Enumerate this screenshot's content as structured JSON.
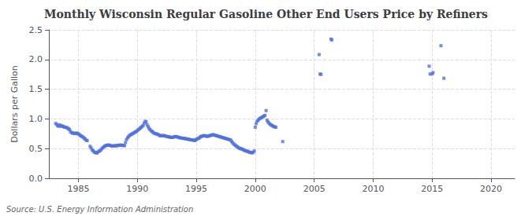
{
  "chart_data": {
    "type": "scatter",
    "title": "Monthly Wisconsin Regular Gasoline Other End Users Price by Refiners",
    "ylabel": "Dollars per Gallon",
    "annotations": [
      "Source: U.S. Energy Information Administration"
    ],
    "marker": "square",
    "grid": true,
    "xlim": [
      1982.5,
      2022
    ],
    "ylim": [
      0.0,
      2.5
    ],
    "xticks": [
      1985,
      1990,
      1995,
      2000,
      2005,
      2010,
      2015,
      2020
    ],
    "yticks": [
      {
        "value": 0,
        "label": "0.0"
      },
      0.5,
      {
        "value": 1,
        "label": "1.0"
      },
      1.5,
      {
        "value": 2,
        "label": "2.0"
      },
      2.5
    ],
    "x": [
      1983.08,
      1983.17,
      1983.25,
      1983.33,
      1983.42,
      1983.5,
      1983.58,
      1983.67,
      1983.75,
      1983.83,
      1983.92,
      1984.0,
      1984.08,
      1984.17,
      1984.25,
      1984.33,
      1984.42,
      1984.5,
      1984.58,
      1984.67,
      1984.75,
      1984.83,
      1984.92,
      1985.0,
      1985.08,
      1985.17,
      1985.25,
      1985.33,
      1985.42,
      1985.5,
      1985.58,
      1985.67,
      1985.75,
      1986.0,
      1986.08,
      1986.17,
      1986.25,
      1986.33,
      1986.42,
      1986.5,
      1986.58,
      1986.67,
      1986.75,
      1986.83,
      1986.92,
      1987.0,
      1987.08,
      1987.17,
      1987.25,
      1987.33,
      1987.42,
      1987.5,
      1987.58,
      1987.67,
      1987.75,
      1987.83,
      1987.92,
      1988.0,
      1988.08,
      1988.17,
      1988.25,
      1988.33,
      1988.42,
      1988.5,
      1988.58,
      1988.67,
      1988.75,
      1988.83,
      1988.92,
      1989.0,
      1989.08,
      1989.17,
      1989.25,
      1989.33,
      1989.42,
      1989.5,
      1989.58,
      1989.67,
      1989.75,
      1989.83,
      1989.92,
      1990.0,
      1990.08,
      1990.17,
      1990.25,
      1990.33,
      1990.42,
      1990.5,
      1990.58,
      1990.67,
      1990.75,
      1990.83,
      1990.92,
      1991.0,
      1991.08,
      1991.17,
      1991.25,
      1991.33,
      1991.42,
      1991.5,
      1991.58,
      1991.67,
      1991.75,
      1991.83,
      1991.92,
      1992.0,
      1992.08,
      1992.17,
      1992.25,
      1992.33,
      1992.42,
      1992.5,
      1992.58,
      1992.67,
      1992.75,
      1992.83,
      1992.92,
      1993.0,
      1993.08,
      1993.17,
      1993.25,
      1993.33,
      1993.42,
      1993.5,
      1993.58,
      1993.67,
      1993.75,
      1993.83,
      1993.92,
      1994.0,
      1994.08,
      1994.17,
      1994.25,
      1994.33,
      1994.42,
      1994.5,
      1994.58,
      1994.67,
      1994.75,
      1994.83,
      1994.92,
      1995.0,
      1995.08,
      1995.17,
      1995.25,
      1995.33,
      1995.42,
      1995.5,
      1995.58,
      1995.67,
      1995.75,
      1995.83,
      1995.92,
      1996.0,
      1996.08,
      1996.17,
      1996.25,
      1996.33,
      1996.42,
      1996.5,
      1996.58,
      1996.67,
      1996.75,
      1996.83,
      1996.92,
      1997.0,
      1997.08,
      1997.17,
      1997.25,
      1997.33,
      1997.42,
      1997.5,
      1997.58,
      1997.67,
      1997.75,
      1997.83,
      1997.92,
      1998.0,
      1998.08,
      1998.17,
      1998.25,
      1998.33,
      1998.42,
      1998.5,
      1998.58,
      1998.67,
      1998.75,
      1998.83,
      1998.92,
      1999.0,
      1999.08,
      1999.17,
      1999.25,
      1999.33,
      1999.42,
      1999.5,
      1999.58,
      1999.67,
      1999.75,
      1999.83,
      1999.92,
      2000.0,
      2000.08,
      2000.17,
      2000.25,
      2000.33,
      2000.42,
      2000.5,
      2000.58,
      2000.67,
      2000.75,
      2000.83,
      2000.92,
      2001.0,
      2001.08,
      2001.17,
      2001.25,
      2001.33,
      2001.42,
      2001.5,
      2001.58,
      2001.67,
      2001.75,
      2002.33,
      2005.42,
      2005.5,
      2005.58,
      2006.42,
      2006.5,
      2014.75,
      2014.83,
      2015.0,
      2015.08,
      2015.75,
      2016.0
    ],
    "values": [
      0.924,
      0.907,
      0.884,
      0.878,
      0.9,
      0.88,
      0.878,
      0.882,
      0.87,
      0.86,
      0.858,
      0.858,
      0.842,
      0.836,
      0.82,
      0.788,
      0.768,
      0.762,
      0.76,
      0.758,
      0.752,
      0.76,
      0.758,
      0.748,
      0.736,
      0.72,
      0.712,
      0.7,
      0.692,
      0.675,
      0.66,
      0.64,
      0.635,
      0.54,
      0.51,
      0.48,
      0.465,
      0.445,
      0.435,
      0.43,
      0.425,
      0.445,
      0.455,
      0.465,
      0.48,
      0.5,
      0.515,
      0.53,
      0.545,
      0.55,
      0.555,
      0.56,
      0.56,
      0.555,
      0.55,
      0.545,
      0.545,
      0.545,
      0.548,
      0.548,
      0.55,
      0.552,
      0.555,
      0.558,
      0.56,
      0.558,
      0.555,
      0.552,
      0.55,
      0.6,
      0.65,
      0.68,
      0.7,
      0.72,
      0.73,
      0.74,
      0.75,
      0.76,
      0.77,
      0.78,
      0.79,
      0.8,
      0.82,
      0.83,
      0.845,
      0.86,
      0.875,
      0.89,
      0.93,
      0.96,
      0.95,
      0.9,
      0.87,
      0.84,
      0.82,
      0.8,
      0.79,
      0.775,
      0.76,
      0.755,
      0.75,
      0.745,
      0.738,
      0.73,
      0.72,
      0.715,
      0.718,
      0.72,
      0.718,
      0.715,
      0.71,
      0.705,
      0.7,
      0.698,
      0.695,
      0.69,
      0.688,
      0.69,
      0.695,
      0.7,
      0.705,
      0.7,
      0.695,
      0.69,
      0.685,
      0.68,
      0.678,
      0.675,
      0.672,
      0.67,
      0.668,
      0.665,
      0.66,
      0.658,
      0.655,
      0.65,
      0.648,
      0.645,
      0.642,
      0.64,
      0.638,
      0.655,
      0.665,
      0.67,
      0.68,
      0.695,
      0.705,
      0.71,
      0.715,
      0.72,
      0.715,
      0.71,
      0.705,
      0.71,
      0.715,
      0.72,
      0.725,
      0.73,
      0.735,
      0.73,
      0.725,
      0.72,
      0.715,
      0.71,
      0.705,
      0.7,
      0.695,
      0.69,
      0.685,
      0.68,
      0.675,
      0.67,
      0.665,
      0.66,
      0.655,
      0.65,
      0.645,
      0.62,
      0.6,
      0.58,
      0.565,
      0.552,
      0.54,
      0.528,
      0.515,
      0.505,
      0.5,
      0.495,
      0.49,
      0.48,
      0.47,
      0.465,
      0.46,
      0.455,
      0.448,
      0.44,
      0.435,
      0.432,
      0.43,
      0.44,
      0.46,
      0.86,
      0.92,
      0.96,
      0.98,
      1.0,
      1.01,
      1.02,
      1.03,
      1.04,
      1.05,
      1.06,
      1.14,
      0.98,
      0.95,
      0.93,
      0.91,
      0.9,
      0.89,
      0.88,
      0.87,
      0.865,
      0.86,
      0.618,
      2.083,
      1.755,
      1.75,
      2.345,
      2.33,
      1.888,
      1.755,
      1.756,
      1.78,
      2.233,
      1.685
    ]
  }
}
